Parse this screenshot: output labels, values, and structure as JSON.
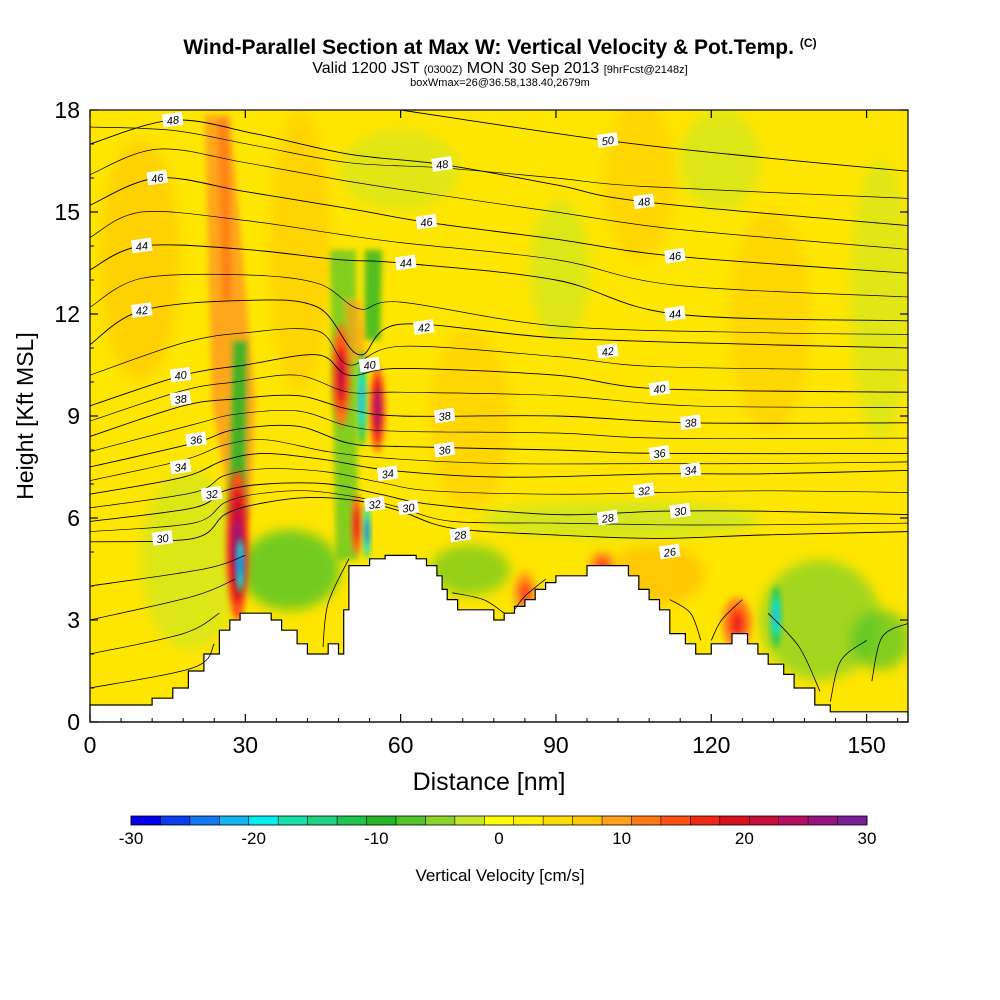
{
  "title": {
    "main": "Wind-Parallel Section at Max W: Vertical Velocity & Pot.Temp.",
    "main_tag": "(C)",
    "valid_prefix": "Valid 1200 JST",
    "valid_utc": "(0300Z)",
    "valid_date": "MON 30 Sep 2013",
    "valid_fcst": "[9hrFcst@2148z]",
    "box_info": "boxWmax=26@36.58,138.40,2679m"
  },
  "chart_data": {
    "type": "heatmap",
    "xlabel": "Distance [nm]",
    "ylabel": "Height [Kft MSL]",
    "xlim": [
      0,
      158
    ],
    "ylim": [
      0,
      18
    ],
    "x_ticks": [
      0,
      30,
      60,
      90,
      120,
      150
    ],
    "y_ticks": [
      0,
      3,
      6,
      9,
      12,
      15,
      18
    ],
    "colorbar": {
      "label": "Vertical Velocity [cm/s]",
      "range": [
        -30,
        30
      ],
      "ticks": [
        -30,
        -20,
        -10,
        0,
        10,
        20,
        30
      ],
      "colors": [
        "#0000ee",
        "#0a3cf0",
        "#1478f0",
        "#14b4f0",
        "#00f0f0",
        "#14e0a8",
        "#1ed282",
        "#1ec350",
        "#28b428",
        "#50c328",
        "#8cd228",
        "#c8e628",
        "#ffff00",
        "#fff000",
        "#ffdc00",
        "#ffc800",
        "#ffa01e",
        "#ff7814",
        "#ff5014",
        "#f02814",
        "#dc0f1e",
        "#c80f3c",
        "#b40f64",
        "#96147d",
        "#781e96"
      ]
    },
    "terrain": [
      [
        0,
        0.5
      ],
      [
        12,
        0.5
      ],
      [
        12,
        0.7
      ],
      [
        16,
        0.7
      ],
      [
        16,
        1.0
      ],
      [
        19,
        1.0
      ],
      [
        19,
        1.5
      ],
      [
        22,
        1.5
      ],
      [
        22,
        2.0
      ],
      [
        25,
        2.0
      ],
      [
        25,
        2.7
      ],
      [
        27,
        2.7
      ],
      [
        27,
        3.0
      ],
      [
        29,
        3.0
      ],
      [
        29,
        3.2
      ],
      [
        35,
        3.2
      ],
      [
        35,
        3.0
      ],
      [
        37,
        3.0
      ],
      [
        37,
        2.7
      ],
      [
        40,
        2.7
      ],
      [
        40,
        2.3
      ],
      [
        42,
        2.3
      ],
      [
        42,
        2.0
      ],
      [
        46,
        2.0
      ],
      [
        46,
        2.3
      ],
      [
        48,
        2.3
      ],
      [
        48,
        2.0
      ],
      [
        49,
        2.0
      ],
      [
        49,
        3.3
      ],
      [
        50,
        3.3
      ],
      [
        50,
        4.6
      ],
      [
        54,
        4.6
      ],
      [
        54,
        4.8
      ],
      [
        57,
        4.8
      ],
      [
        57,
        4.9
      ],
      [
        63,
        4.9
      ],
      [
        63,
        4.8
      ],
      [
        65,
        4.8
      ],
      [
        65,
        4.6
      ],
      [
        67,
        4.6
      ],
      [
        67,
        4.3
      ],
      [
        68,
        4.3
      ],
      [
        68,
        3.9
      ],
      [
        69,
        3.9
      ],
      [
        69,
        3.6
      ],
      [
        71,
        3.6
      ],
      [
        71,
        3.3
      ],
      [
        76,
        3.3
      ],
      [
        76,
        3.3
      ],
      [
        78,
        3.3
      ],
      [
        78,
        3.0
      ],
      [
        80,
        3.0
      ],
      [
        80,
        3.2
      ],
      [
        82,
        3.2
      ],
      [
        82,
        3.4
      ],
      [
        84,
        3.4
      ],
      [
        84,
        3.6
      ],
      [
        86,
        3.6
      ],
      [
        86,
        3.9
      ],
      [
        88,
        3.9
      ],
      [
        88,
        4.1
      ],
      [
        90,
        4.1
      ],
      [
        90,
        4.3
      ],
      [
        96,
        4.3
      ],
      [
        96,
        4.6
      ],
      [
        104,
        4.6
      ],
      [
        104,
        4.3
      ],
      [
        106,
        4.3
      ],
      [
        106,
        3.9
      ],
      [
        108,
        3.9
      ],
      [
        108,
        3.6
      ],
      [
        110,
        3.6
      ],
      [
        110,
        3.3
      ],
      [
        112,
        3.3
      ],
      [
        112,
        2.6
      ],
      [
        115,
        2.6
      ],
      [
        115,
        2.3
      ],
      [
        117,
        2.3
      ],
      [
        117,
        2.0
      ],
      [
        120,
        2.0
      ],
      [
        120,
        2.3
      ],
      [
        124,
        2.3
      ],
      [
        124,
        2.6
      ],
      [
        127,
        2.6
      ],
      [
        127,
        2.3
      ],
      [
        129,
        2.3
      ],
      [
        129,
        2.0
      ],
      [
        131,
        2.0
      ],
      [
        131,
        1.7
      ],
      [
        134,
        1.7
      ],
      [
        134,
        1.4
      ],
      [
        136,
        1.4
      ],
      [
        136,
        1.0
      ],
      [
        140,
        1.0
      ],
      [
        140,
        0.5
      ],
      [
        143,
        0.5
      ],
      [
        143,
        0.3
      ],
      [
        158,
        0.3
      ],
      [
        158,
        0
      ]
    ],
    "theta_contours": [
      {
        "label": "30",
        "at": [
          14,
          5.4
        ]
      },
      {
        "label": "32",
        "at": [
          23.5,
          6.7
        ]
      },
      {
        "label": "34",
        "at": [
          17.5,
          7.5
        ]
      },
      {
        "label": "36",
        "at": [
          20.5,
          8.3
        ]
      },
      {
        "label": "38",
        "at": [
          17.5,
          9.5
        ]
      },
      {
        "label": "40",
        "at": [
          17.5,
          10.2
        ]
      },
      {
        "label": "42",
        "at": [
          10,
          12.1
        ]
      },
      {
        "label": "44",
        "at": [
          10,
          14.0
        ]
      },
      {
        "label": "46",
        "at": [
          13,
          16.0
        ]
      },
      {
        "label": "48",
        "at": [
          16,
          17.7
        ]
      },
      {
        "label": "32",
        "at": [
          55,
          6.4
        ]
      },
      {
        "label": "30",
        "at": [
          61.5,
          6.3
        ]
      },
      {
        "label": "34",
        "at": [
          57.5,
          7.3
        ]
      },
      {
        "label": "40",
        "at": [
          54,
          10.5
        ]
      },
      {
        "label": "28",
        "at": [
          71.5,
          5.5
        ]
      },
      {
        "label": "36",
        "at": [
          68.5,
          8.0
        ]
      },
      {
        "label": "38",
        "at": [
          68.5,
          9.0
        ]
      },
      {
        "label": "42",
        "at": [
          64.5,
          11.6
        ]
      },
      {
        "label": "44",
        "at": [
          61,
          13.5
        ]
      },
      {
        "label": "46",
        "at": [
          65,
          14.7
        ]
      },
      {
        "label": "48",
        "at": [
          68,
          16.4
        ]
      },
      {
        "label": "50",
        "at": [
          100,
          17.1
        ]
      },
      {
        "label": "48",
        "at": [
          107,
          15.3
        ]
      },
      {
        "label": "46",
        "at": [
          113,
          13.7
        ]
      },
      {
        "label": "44",
        "at": [
          113,
          12.0
        ]
      },
      {
        "label": "42",
        "at": [
          100,
          10.9
        ]
      },
      {
        "label": "40",
        "at": [
          110,
          9.8
        ]
      },
      {
        "label": "38",
        "at": [
          116,
          8.8
        ]
      },
      {
        "label": "36",
        "at": [
          110,
          7.9
        ]
      },
      {
        "label": "34",
        "at": [
          116,
          7.4
        ]
      },
      {
        "label": "32",
        "at": [
          107,
          6.8
        ]
      },
      {
        "label": "30",
        "at": [
          114,
          6.2
        ]
      },
      {
        "label": "28",
        "at": [
          100,
          6.0
        ]
      },
      {
        "label": "26",
        "at": [
          112,
          5.0
        ]
      }
    ],
    "updrafts": [
      {
        "x": 28.5,
        "y": 5.2,
        "w": 2.2,
        "h": 2.2,
        "value": 26
      },
      {
        "x": 48.5,
        "y": 10.2,
        "w": 1.8,
        "h": 1.5,
        "value": 22
      },
      {
        "x": 55.5,
        "y": 9.2,
        "w": 1.6,
        "h": 1.3,
        "value": 24
      },
      {
        "x": 51.5,
        "y": 5.8,
        "w": 1.0,
        "h": 0.9,
        "value": 20
      },
      {
        "x": 84,
        "y": 3.8,
        "w": 2.6,
        "h": 0.7,
        "value": 14
      },
      {
        "x": 99,
        "y": 4.6,
        "w": 3.0,
        "h": 0.5,
        "value": 14
      },
      {
        "x": 125,
        "y": 2.9,
        "w": 3.0,
        "h": 0.8,
        "value": 16
      }
    ],
    "downdrafts": [
      {
        "x": 29,
        "y": 4.6,
        "w": 0.8,
        "h": 0.8,
        "value": -26
      },
      {
        "x": 52.5,
        "y": 9.5,
        "w": 0.9,
        "h": 1.4,
        "value": -22
      },
      {
        "x": 53.5,
        "y": 5.6,
        "w": 0.7,
        "h": 0.8,
        "value": -28
      },
      {
        "x": 132.5,
        "y": 3.1,
        "w": 1.0,
        "h": 0.9,
        "value": -22
      }
    ]
  }
}
